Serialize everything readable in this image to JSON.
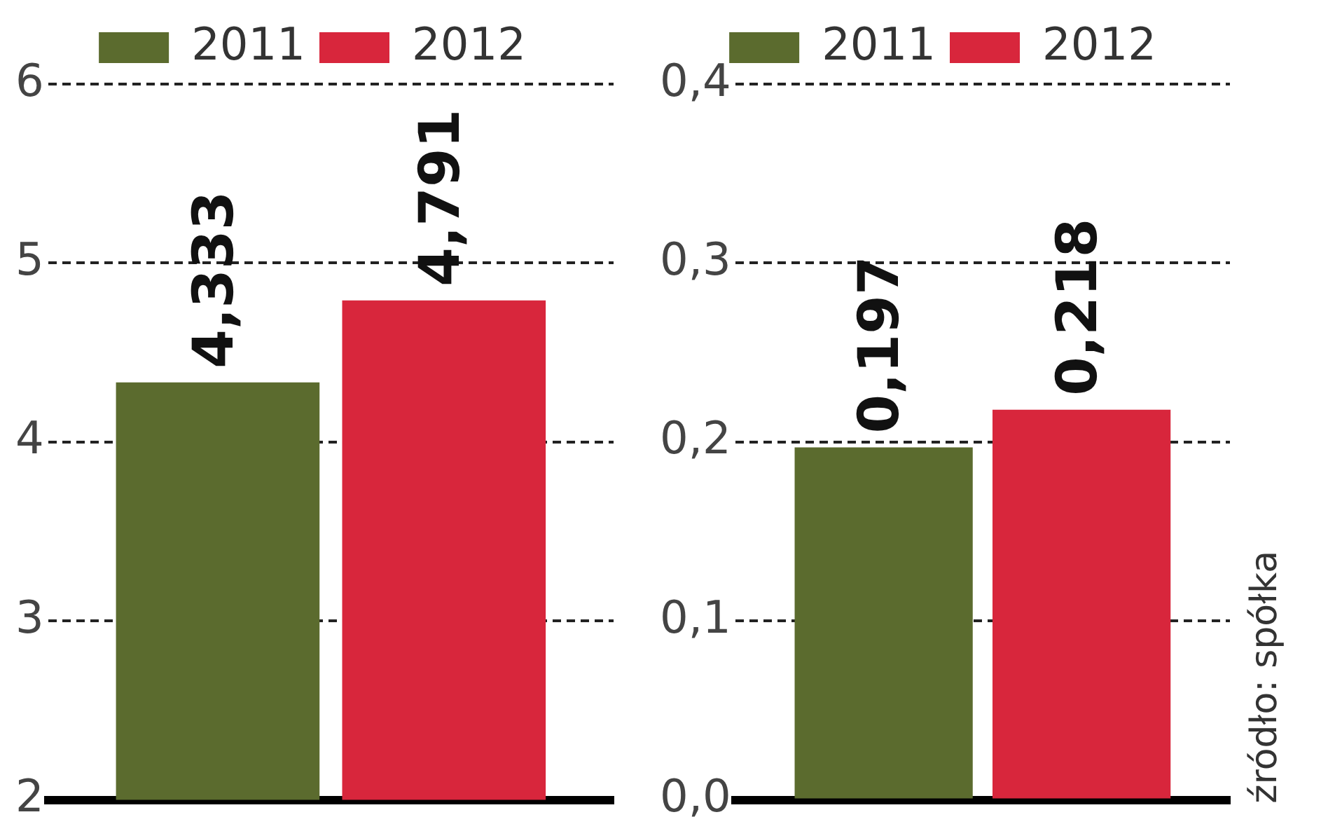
{
  "chart_data": [
    {
      "type": "bar",
      "categories": [
        null
      ],
      "series": [
        {
          "name": "2011",
          "color": "#5b6b2e",
          "values": [
            4.333
          ],
          "value_labels": [
            "4,333"
          ]
        },
        {
          "name": "2012",
          "color": "#d8263c",
          "values": [
            4.791
          ],
          "value_labels": [
            "4,791"
          ]
        }
      ],
      "ylim": [
        2,
        6
      ],
      "yticks": [
        2,
        3,
        4,
        5,
        6
      ],
      "grid": "y",
      "legend": "top"
    },
    {
      "type": "bar",
      "categories": [
        null
      ],
      "series": [
        {
          "name": "2011",
          "color": "#5b6b2e",
          "values": [
            0.197
          ],
          "value_labels": [
            "0,197"
          ]
        },
        {
          "name": "2012",
          "color": "#d8263c",
          "values": [
            0.218
          ],
          "value_labels": [
            "0,218"
          ]
        }
      ],
      "ylim": [
        0,
        0.4
      ],
      "yticks": [
        {
          "value": 0,
          "label": "0,0"
        },
        {
          "value": 0.1,
          "label": "0,1"
        },
        {
          "value": 0.2,
          "label": "0,2"
        },
        {
          "value": 0.3,
          "label": "0,3"
        },
        {
          "value": 0.4,
          "label": "0,4"
        }
      ],
      "grid": "y",
      "legend": "top",
      "annotations": [
        "źródło: spółka"
      ]
    }
  ]
}
